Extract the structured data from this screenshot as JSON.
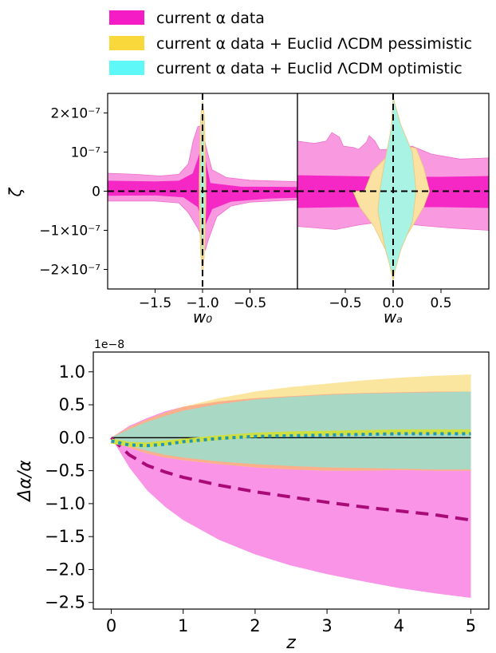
{
  "legend": {
    "items": [
      {
        "label": "current α data",
        "color": "#f41cc4"
      },
      {
        "label": "current α data + Euclid ΛCDM pessimistic",
        "color": "#f8d83a"
      },
      {
        "label": "current α data + Euclid ΛCDM optimistic",
        "color": "#5ff8f8"
      }
    ]
  },
  "chart_data": [
    {
      "type": "area",
      "panel": "zeta-vs-w0",
      "xlabel": "w₀",
      "ylabel": "ζ",
      "xlim": [
        -2.0,
        0.0
      ],
      "ylim": [
        -2.5e-07,
        2.5e-07
      ],
      "xticks": [
        {
          "v": -1.5,
          "label": "−1.5"
        },
        {
          "v": -1.0,
          "label": "−1.0"
        },
        {
          "v": -0.5,
          "label": "−0.5"
        }
      ],
      "yticks": [
        {
          "v": 2e-07,
          "label": "2×10⁻⁷"
        },
        {
          "v": 1e-07,
          "label": "10⁻⁷"
        },
        {
          "v": 0,
          "label": "0"
        },
        {
          "v": -1e-07,
          "label": "−1×10⁻⁷"
        },
        {
          "v": -2e-07,
          "label": "−2×10⁻⁷"
        }
      ],
      "reference_lines": {
        "x": -1.0,
        "y": 0
      },
      "regions": [
        {
          "series": "current α data",
          "level": "2σ",
          "color": "#f99ae0",
          "upper": [
            [
              -2.0,
              4.6e-08
            ],
            [
              -1.7,
              4.3e-08
            ],
            [
              -1.45,
              3.9e-08
            ],
            [
              -1.25,
              4.3e-08
            ],
            [
              -1.15,
              7e-08
            ],
            [
              -1.1,
              1.28e-07
            ],
            [
              -1.05,
              1.65e-07
            ],
            [
              -1.0,
              1.68e-07
            ],
            [
              -0.97,
              1.2e-07
            ],
            [
              -0.9,
              5.5e-08
            ],
            [
              -0.75,
              3.5e-08
            ],
            [
              -0.5,
              2.8e-08
            ],
            [
              0.0,
              2.4e-08
            ]
          ],
          "lower": [
            [
              -2.0,
              -2.5e-08
            ],
            [
              -1.5,
              -2.5e-08
            ],
            [
              -1.25,
              -3e-08
            ],
            [
              -1.15,
              -5.5e-08
            ],
            [
              -1.05,
              -9.5e-08
            ],
            [
              -1.0,
              -1.2e-07
            ],
            [
              -0.97,
              -1.5e-07
            ],
            [
              -0.94,
              -1.25e-07
            ],
            [
              -0.85,
              -6.5e-08
            ],
            [
              -0.7,
              -3.8e-08
            ],
            [
              -0.5,
              -2.8e-08
            ],
            [
              0.0,
              -2.2e-08
            ]
          ]
        },
        {
          "series": "current α data",
          "level": "1σ",
          "color": "#f528c6",
          "upper": [
            [
              -2.0,
              2.6e-08
            ],
            [
              -1.5,
              2.4e-08
            ],
            [
              -1.25,
              2.6e-08
            ],
            [
              -1.1,
              4.5e-08
            ],
            [
              -1.02,
              1.02e-07
            ],
            [
              -0.98,
              9e-08
            ],
            [
              -0.92,
              2e-08
            ],
            [
              -0.6,
              1.1e-08
            ],
            [
              0.0,
              1e-08
            ]
          ],
          "lower": [
            [
              -2.0,
              -1.1e-08
            ],
            [
              -1.5,
              -1e-08
            ],
            [
              -1.2,
              -1.5e-08
            ],
            [
              -1.05,
              -4e-08
            ],
            [
              -0.98,
              -9e-08
            ],
            [
              -0.9,
              -4.5e-08
            ],
            [
              -0.7,
              -2.6e-08
            ],
            [
              -0.3,
              -1.8e-08
            ],
            [
              0.0,
              -1.6e-08
            ]
          ]
        },
        {
          "series": "current α data + Euclid ΛCDM pessimistic",
          "level": "2σ",
          "color": "#fbe8a8",
          "upper": [
            [
              -1.035,
              3e-08
            ],
            [
              -1.02,
              1.9e-07
            ],
            [
              -1.0,
              2.3e-07
            ],
            [
              -0.98,
              1.9e-07
            ],
            [
              -0.965,
              3e-08
            ]
          ],
          "lower": [
            [
              -1.035,
              -3e-08
            ],
            [
              -1.02,
              -1.6e-07
            ],
            [
              -1.0,
              -2.2e-07
            ],
            [
              -0.98,
              -1.6e-07
            ],
            [
              -0.965,
              -3e-08
            ]
          ]
        },
        {
          "series": "current α data + Euclid ΛCDM optimistic",
          "level": "2σ",
          "color": "#a8f4e8",
          "upper": [
            [
              -1.025,
              3e-08
            ],
            [
              -1.01,
              1.6e-07
            ],
            [
              -1.0,
              1.9e-07
            ],
            [
              -0.99,
              1.6e-07
            ],
            [
              -0.975,
              3e-08
            ]
          ],
          "lower": [
            [
              -1.025,
              -3e-08
            ],
            [
              -1.01,
              -1.4e-07
            ],
            [
              -1.0,
              -1.8e-07
            ],
            [
              -0.99,
              -1.4e-07
            ],
            [
              -0.975,
              -3e-08
            ]
          ]
        }
      ]
    },
    {
      "type": "area",
      "panel": "zeta-vs-wa",
      "xlabel": "wₐ",
      "ylabel": "ζ",
      "xlim": [
        -1.0,
        1.0
      ],
      "ylim": [
        -2.5e-07,
        2.5e-07
      ],
      "xticks": [
        {
          "v": -0.5,
          "label": "−0.5"
        },
        {
          "v": 0.0,
          "label": "0.0"
        },
        {
          "v": 0.5,
          "label": "0.5"
        }
      ],
      "reference_lines": {
        "x": 0.0,
        "y": 0
      },
      "regions": [
        {
          "series": "current α data",
          "level": "2σ",
          "color": "#f99ae0",
          "upper": [
            [
              -1.0,
              1.28e-07
            ],
            [
              -0.82,
              1.22e-07
            ],
            [
              -0.7,
              1.28e-07
            ],
            [
              -0.64,
              1.5e-07
            ],
            [
              -0.56,
              1.38e-07
            ],
            [
              -0.52,
              1.15e-07
            ],
            [
              -0.42,
              1.12e-07
            ],
            [
              -0.36,
              1.07e-07
            ],
            [
              -0.28,
              1.25e-07
            ],
            [
              -0.25,
              1.42e-07
            ],
            [
              -0.19,
              1.28e-07
            ],
            [
              -0.14,
              1.06e-07
            ],
            [
              0.0,
              1.08e-07
            ],
            [
              0.2,
              1.15e-07
            ],
            [
              0.4,
              9.5e-08
            ],
            [
              0.7,
              8.2e-08
            ],
            [
              1.0,
              8.5e-08
            ]
          ],
          "lower": [
            [
              -1.0,
              -9e-08
            ],
            [
              -0.6,
              -9.8e-08
            ],
            [
              -0.35,
              -8.6e-08
            ],
            [
              -0.1,
              -7.8e-08
            ],
            [
              0.1,
              -8.2e-08
            ],
            [
              0.3,
              -8.8e-08
            ],
            [
              0.6,
              -9.4e-08
            ],
            [
              1.0,
              -1e-07
            ]
          ]
        },
        {
          "series": "current α data",
          "level": "1σ",
          "color": "#f528c6",
          "upper": [
            [
              -1.0,
              4e-08
            ],
            [
              -0.5,
              3.8e-08
            ],
            [
              0.0,
              3.6e-08
            ],
            [
              0.5,
              3.6e-08
            ],
            [
              1.0,
              3.8e-08
            ]
          ],
          "lower": [
            [
              -1.0,
              -4.2e-08
            ],
            [
              -0.5,
              -4e-08
            ],
            [
              0.0,
              -4e-08
            ],
            [
              0.5,
              -4e-08
            ],
            [
              1.0,
              -4.2e-08
            ]
          ]
        },
        {
          "series": "current α data + Euclid ΛCDM pessimistic",
          "level": "2σ",
          "color": "#fbe2a2",
          "upper": [
            [
              -0.3,
              0
            ],
            [
              -0.22,
              5e-08
            ],
            [
              -0.1,
              8e-08
            ],
            [
              0.0,
              1.05e-07
            ],
            [
              0.12,
              1.15e-07
            ],
            [
              0.24,
              1.1e-07
            ],
            [
              0.32,
              6e-08
            ],
            [
              0.38,
              0
            ],
            [
              0.32,
              -4e-08
            ],
            [
              0.2,
              -9e-08
            ],
            [
              0.05,
              -1.5e-07
            ],
            [
              0.0,
              -2.3e-07
            ],
            [
              -0.06,
              -1.6e-07
            ],
            [
              -0.2,
              -9e-08
            ],
            [
              -0.35,
              -4e-08
            ],
            [
              -0.42,
              0
            ]
          ],
          "lower": []
        },
        {
          "series": "current α data + Euclid ΛCDM optimistic",
          "level": "2σ",
          "color": "#a8f3e4",
          "upper": [
            [
              -0.14,
              0
            ],
            [
              -0.1,
              6e-08
            ],
            [
              -0.02,
              1.6e-07
            ],
            [
              0.0,
              2.4e-07
            ],
            [
              0.08,
              1.7e-07
            ],
            [
              0.2,
              1e-07
            ],
            [
              0.24,
              0
            ],
            [
              0.2,
              -8e-08
            ],
            [
              0.08,
              -1.5e-07
            ],
            [
              0.0,
              -2.2e-07
            ],
            [
              -0.08,
              -1.5e-07
            ],
            [
              -0.16,
              -5e-08
            ]
          ],
          "lower": []
        }
      ]
    },
    {
      "type": "area",
      "panel": "delta-alpha-vs-z",
      "xlabel": "z",
      "ylabel": "Δα/α",
      "offset_label": "1e−8",
      "xlim": [
        -0.25,
        5.25
      ],
      "ylim": [
        -2.6,
        1.3
      ],
      "xticks": [
        {
          "v": 0,
          "label": "0"
        },
        {
          "v": 1,
          "label": "1"
        },
        {
          "v": 2,
          "label": "2"
        },
        {
          "v": 3,
          "label": "3"
        },
        {
          "v": 4,
          "label": "4"
        },
        {
          "v": 5,
          "label": "5"
        }
      ],
      "yticks": [
        {
          "v": 1.0,
          "label": "1.0"
        },
        {
          "v": 0.5,
          "label": "0.5"
        },
        {
          "v": 0.0,
          "label": "0.0"
        },
        {
          "v": -0.5,
          "label": "−0.5"
        },
        {
          "v": -1.0,
          "label": "−1.0"
        },
        {
          "v": -1.5,
          "label": "−1.5"
        },
        {
          "v": -2.0,
          "label": "−2.0"
        },
        {
          "v": -2.5,
          "label": "−2.5"
        }
      ],
      "x": [
        0,
        0.25,
        0.5,
        0.75,
        1,
        1.5,
        2,
        2.5,
        3,
        3.5,
        4,
        4.5,
        5
      ],
      "bands": [
        {
          "series": "current α data",
          "color": "#f994e6",
          "upper": [
            0,
            0.18,
            0.3,
            0.4,
            0.47,
            0.55,
            0.6,
            0.63,
            0.66,
            0.68,
            0.69,
            0.7,
            0.7
          ],
          "lower": [
            0,
            -0.45,
            -0.8,
            -1.05,
            -1.25,
            -1.55,
            -1.77,
            -1.94,
            -2.07,
            -2.18,
            -2.28,
            -2.36,
            -2.43
          ]
        },
        {
          "series": "current α data + Euclid ΛCDM pessimistic",
          "color": "#fbe6a0",
          "upper": [
            0,
            0.16,
            0.28,
            0.38,
            0.47,
            0.6,
            0.7,
            0.77,
            0.82,
            0.87,
            0.91,
            0.94,
            0.96
          ],
          "lower": [
            0,
            -0.15,
            -0.24,
            -0.3,
            -0.34,
            -0.4,
            -0.45,
            -0.48,
            -0.5,
            -0.5,
            -0.49,
            -0.5,
            -0.5
          ]
        },
        {
          "series": "current α data + Euclid ΛCDM optimistic",
          "color": "#a9d8c4",
          "upper": [
            0,
            0.13,
            0.24,
            0.33,
            0.41,
            0.51,
            0.58,
            0.62,
            0.65,
            0.67,
            0.68,
            0.69,
            0.7
          ],
          "lower": [
            0,
            -0.12,
            -0.2,
            -0.26,
            -0.3,
            -0.36,
            -0.4,
            -0.43,
            -0.45,
            -0.46,
            -0.47,
            -0.48,
            -0.48
          ]
        }
      ],
      "overlap_color": "#fbb08c",
      "lines": [
        {
          "series": "current α data",
          "style": "dashed",
          "color": "#aa0a78",
          "values": [
            0,
            -0.26,
            -0.42,
            -0.52,
            -0.6,
            -0.72,
            -0.82,
            -0.9,
            -0.98,
            -1.05,
            -1.11,
            -1.17,
            -1.25
          ]
        },
        {
          "series": "current α data + Euclid ΛCDM pessimistic",
          "style": "solid",
          "color": "#d0e040",
          "values": [
            -0.05,
            -0.1,
            -0.11,
            -0.08,
            -0.05,
            0.0,
            0.04,
            0.06,
            0.07,
            0.08,
            0.09,
            0.09,
            0.09
          ]
        },
        {
          "series": "current α data + Euclid ΛCDM optimistic",
          "style": "dotted",
          "color": "#1e96b4",
          "values": [
            -0.05,
            -0.11,
            -0.12,
            -0.1,
            -0.06,
            -0.01,
            0.02,
            0.03,
            0.04,
            0.05,
            0.06,
            0.06,
            0.06
          ]
        }
      ],
      "reference_line": 0
    }
  ]
}
